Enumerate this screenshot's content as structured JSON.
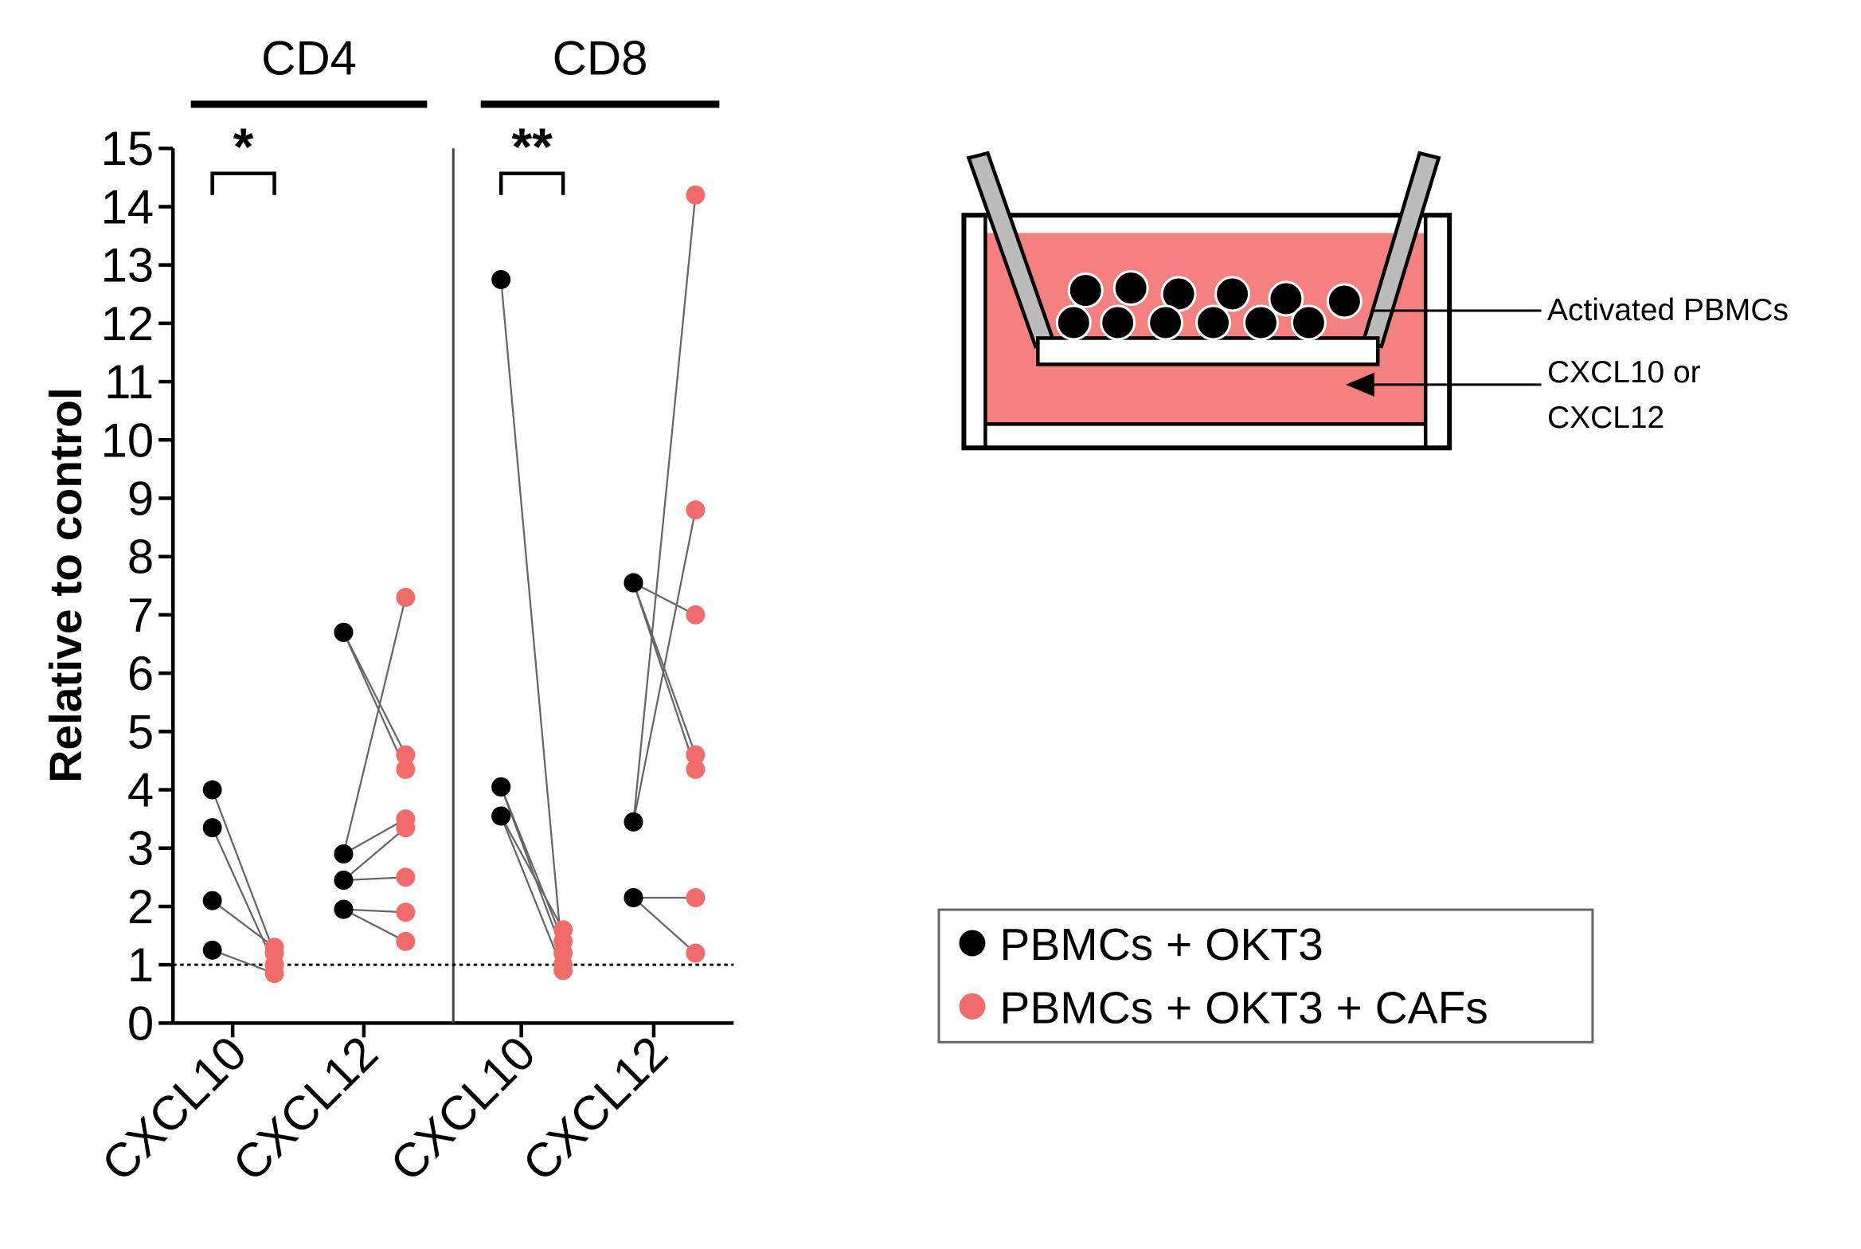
{
  "chart_data": {
    "type": "scatter",
    "ylabel": "Relative to control",
    "ylim": [
      0,
      15
    ],
    "yticks": [
      0,
      1,
      2,
      3,
      4,
      5,
      6,
      7,
      8,
      9,
      10,
      11,
      12,
      13,
      14,
      15
    ],
    "reference_line": 1,
    "groups": [
      {
        "title": "CD4",
        "annotation": "*"
      },
      {
        "title": "CD8",
        "annotation": "**"
      }
    ],
    "categories": [
      "CXCL10",
      "CXCL12",
      "CXCL10",
      "CXCL12"
    ],
    "series": [
      {
        "name": "PBMCs + OKT3",
        "color": "#000000",
        "values": [
          [
            4.0,
            3.35,
            2.1,
            1.25
          ],
          [
            6.7,
            6.7,
            2.9,
            2.9,
            2.45,
            2.45,
            1.95,
            1.95
          ],
          [
            12.75,
            4.05,
            4.05,
            3.55,
            3.55
          ],
          [
            7.55,
            7.55,
            7.55,
            3.45,
            3.45,
            2.15,
            2.15
          ]
        ]
      },
      {
        "name": "PBMCs + OKT3 + CAFs",
        "color": "#f26b6b",
        "values": [
          [
            1.2,
            1.0,
            1.3,
            0.85
          ],
          [
            4.6,
            4.35,
            7.3,
            3.5,
            3.35,
            2.5,
            1.9,
            1.4
          ],
          [
            1.0,
            1.4,
            1.2,
            1.6,
            0.9
          ],
          [
            7.0,
            4.6,
            4.35,
            14.2,
            8.8,
            2.15,
            1.2
          ]
        ]
      }
    ]
  },
  "diagram": {
    "labels": [
      "Activated PBMCs",
      [
        "CXCL10 or",
        "CXCL12"
      ]
    ]
  }
}
